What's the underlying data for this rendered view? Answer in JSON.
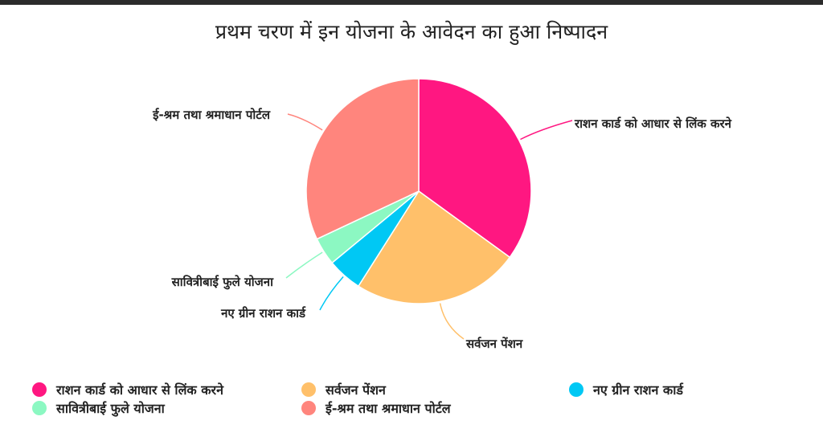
{
  "chart_data": {
    "type": "pie",
    "title": "प्रथम चरण में इन योजना के आवेदन का हुआ निष्पादन",
    "legend_position": "bottom",
    "slices": [
      {
        "label": "राशन कार्ड को आधार से लिंक करने",
        "value": 35,
        "color": "#FF1781"
      },
      {
        "label": "सर्वजन पेंशन",
        "value": 24,
        "color": "#FFC06A"
      },
      {
        "label": "नए ग्रीन राशन कार्ड",
        "value": 5,
        "color": "#00C8F4"
      },
      {
        "label": "सावित्रीबाई फुले योजना",
        "value": 4,
        "color": "#8CF8C2"
      },
      {
        "label": "ई-श्रम तथा श्रमाधान पोर्टल",
        "value": 32,
        "color": "#FF857D"
      }
    ]
  }
}
